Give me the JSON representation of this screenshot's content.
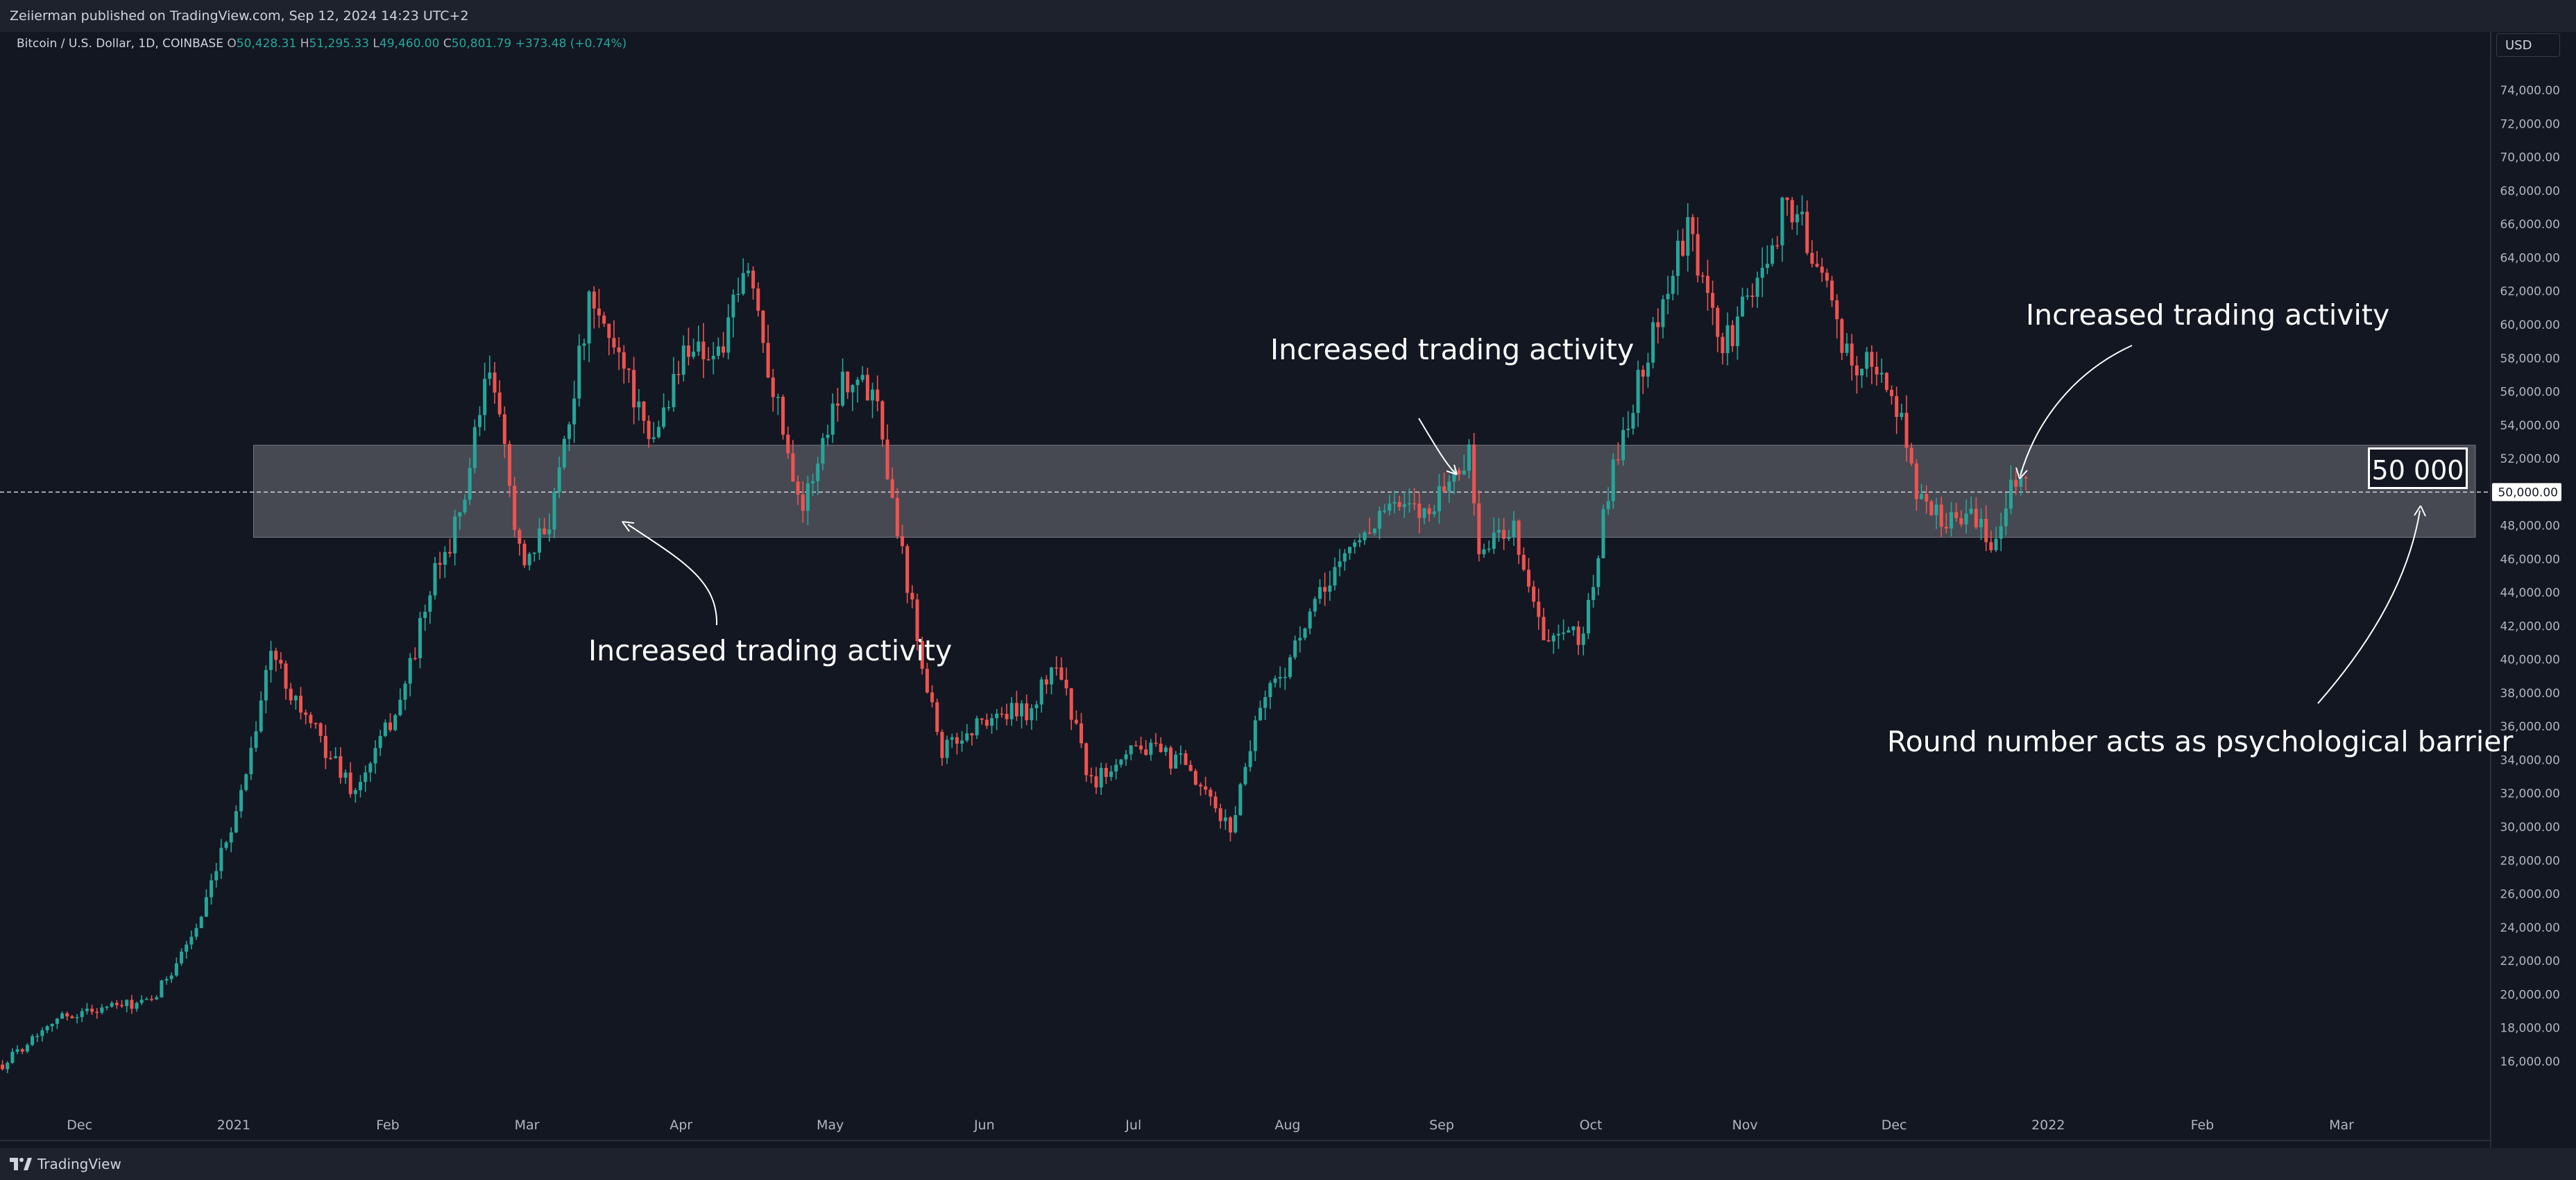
{
  "header": {
    "published": "Zeiierman published on TradingView.com, Sep 12, 2024 14:23 UTC+2"
  },
  "legend": {
    "symbol": "Bitcoin / U.S. Dollar, 1D, COINBASE",
    "o_label": "O",
    "o_value": "50,428.31",
    "h_label": "H",
    "h_value": "51,295.33",
    "l_label": "L",
    "l_value": "49,460.00",
    "c_label": "C",
    "c_value": "50,801.79",
    "change": "+373.48 (+0.74%)"
  },
  "currency": "USD",
  "footer": {
    "brand": "TradingView"
  },
  "annotations": {
    "left": "Increased trading activity",
    "middle": "Increased trading activity",
    "right": "Increased trading activity",
    "psych": "Round number acts as psychological barrier",
    "boxed": "50 000"
  },
  "colors": {
    "background": "#131722",
    "up": "#26a69a",
    "down": "#ef5350",
    "zone": "#ffffff",
    "axis_text": "#b2b5be"
  },
  "chart_data": {
    "type": "candlestick",
    "title": "Bitcoin / U.S. Dollar, 1D, COINBASE",
    "x_start": "2020-11-15",
    "x_end": "2022-03-31",
    "ylim": [
      14500,
      78000
    ],
    "y_ticks": [
      16000,
      18000,
      20000,
      22000,
      24000,
      26000,
      28000,
      30000,
      32000,
      34000,
      36000,
      38000,
      40000,
      42000,
      44000,
      46000,
      48000,
      50000,
      52000,
      54000,
      56000,
      58000,
      60000,
      62000,
      64000,
      66000,
      68000,
      70000,
      72000,
      74000
    ],
    "y_tick_labels": [
      "16,000.00",
      "18,000.00",
      "20,000.00",
      "22,000.00",
      "24,000.00",
      "26,000.00",
      "28,000.00",
      "30,000.00",
      "32,000.00",
      "34,000.00",
      "36,000.00",
      "38,000.00",
      "40,000.00",
      "42,000.00",
      "44,000.00",
      "46,000.00",
      "48,000.00",
      "50,000.00",
      "52,000.00",
      "54,000.00",
      "56,000.00",
      "58,000.00",
      "60,000.00",
      "62,000.00",
      "64,000.00",
      "66,000.00",
      "68,000.00",
      "70,000.00",
      "72,000.00",
      "74,000.00"
    ],
    "x_ticks": [
      {
        "label": "Dec",
        "date": "2020-12-01"
      },
      {
        "label": "2021",
        "date": "2021-01-01"
      },
      {
        "label": "Feb",
        "date": "2021-02-01"
      },
      {
        "label": "Mar",
        "date": "2021-03-01"
      },
      {
        "label": "Apr",
        "date": "2021-04-01"
      },
      {
        "label": "May",
        "date": "2021-05-01"
      },
      {
        "label": "Jun",
        "date": "2021-06-01"
      },
      {
        "label": "Jul",
        "date": "2021-07-01"
      },
      {
        "label": "Aug",
        "date": "2021-08-01"
      },
      {
        "label": "Sep",
        "date": "2021-09-01"
      },
      {
        "label": "Oct",
        "date": "2021-10-01"
      },
      {
        "label": "Nov",
        "date": "2021-11-01"
      },
      {
        "label": "Dec",
        "date": "2021-12-01"
      },
      {
        "label": "2022",
        "date": "2022-01-01"
      },
      {
        "label": "Feb",
        "date": "2022-02-01"
      },
      {
        "label": "Mar",
        "date": "2022-03-01"
      }
    ],
    "zone": {
      "low": 47300,
      "high": 52800,
      "start": "2021-01-05"
    },
    "price_line": {
      "value": 50000,
      "label": "50,000.00"
    },
    "price_path": [
      {
        "date": "2020-11-15",
        "close": 15800
      },
      {
        "date": "2020-11-25",
        "close": 18500
      },
      {
        "date": "2020-12-05",
        "close": 19200
      },
      {
        "date": "2020-12-15",
        "close": 19500
      },
      {
        "date": "2020-12-25",
        "close": 24500
      },
      {
        "date": "2021-01-02",
        "close": 32000
      },
      {
        "date": "2021-01-08",
        "close": 40500
      },
      {
        "date": "2021-01-15",
        "close": 36500
      },
      {
        "date": "2021-01-25",
        "close": 32000
      },
      {
        "date": "2021-02-03",
        "close": 37500
      },
      {
        "date": "2021-02-10",
        "close": 45000
      },
      {
        "date": "2021-02-15",
        "close": 48500
      },
      {
        "date": "2021-02-21",
        "close": 57500
      },
      {
        "date": "2021-02-28",
        "close": 45000
      },
      {
        "date": "2021-03-05",
        "close": 48500
      },
      {
        "date": "2021-03-13",
        "close": 61000
      },
      {
        "date": "2021-03-20",
        "close": 58000
      },
      {
        "date": "2021-03-25",
        "close": 52500
      },
      {
        "date": "2021-04-02",
        "close": 59000
      },
      {
        "date": "2021-04-08",
        "close": 58000
      },
      {
        "date": "2021-04-14",
        "close": 63500
      },
      {
        "date": "2021-04-20",
        "close": 55000
      },
      {
        "date": "2021-04-25",
        "close": 49000
      },
      {
        "date": "2021-05-03",
        "close": 57000
      },
      {
        "date": "2021-05-10",
        "close": 56000
      },
      {
        "date": "2021-05-13",
        "close": 49500
      },
      {
        "date": "2021-05-19",
        "close": 40000
      },
      {
        "date": "2021-05-23",
        "close": 34500
      },
      {
        "date": "2021-06-01",
        "close": 36500
      },
      {
        "date": "2021-06-10",
        "close": 37000
      },
      {
        "date": "2021-06-15",
        "close": 40000
      },
      {
        "date": "2021-06-22",
        "close": 32500
      },
      {
        "date": "2021-06-30",
        "close": 35000
      },
      {
        "date": "2021-07-10",
        "close": 33800
      },
      {
        "date": "2021-07-20",
        "close": 29800
      },
      {
        "date": "2021-07-26",
        "close": 37500
      },
      {
        "date": "2021-08-01",
        "close": 40000
      },
      {
        "date": "2021-08-10",
        "close": 45500
      },
      {
        "date": "2021-08-20",
        "close": 49000
      },
      {
        "date": "2021-08-28",
        "close": 48800
      },
      {
        "date": "2021-09-06",
        "close": 52200
      },
      {
        "date": "2021-09-08",
        "close": 46500
      },
      {
        "date": "2021-09-15",
        "close": 48000
      },
      {
        "date": "2021-09-21",
        "close": 41000
      },
      {
        "date": "2021-09-29",
        "close": 41500
      },
      {
        "date": "2021-10-05",
        "close": 51500
      },
      {
        "date": "2021-10-15",
        "close": 61500
      },
      {
        "date": "2021-10-20",
        "close": 65500
      },
      {
        "date": "2021-10-27",
        "close": 58500
      },
      {
        "date": "2021-11-03",
        "close": 62500
      },
      {
        "date": "2021-11-09",
        "close": 67500
      },
      {
        "date": "2021-11-15",
        "close": 64000
      },
      {
        "date": "2021-11-20",
        "close": 58500
      },
      {
        "date": "2021-11-28",
        "close": 57000
      },
      {
        "date": "2021-12-03",
        "close": 53500
      },
      {
        "date": "2021-12-05",
        "close": 49500
      },
      {
        "date": "2021-12-10",
        "close": 48500
      },
      {
        "date": "2021-12-15",
        "close": 48800
      },
      {
        "date": "2021-12-20",
        "close": 46800
      },
      {
        "date": "2021-12-24",
        "close": 50800
      },
      {
        "date": "2021-12-27",
        "close": 50800
      }
    ]
  }
}
